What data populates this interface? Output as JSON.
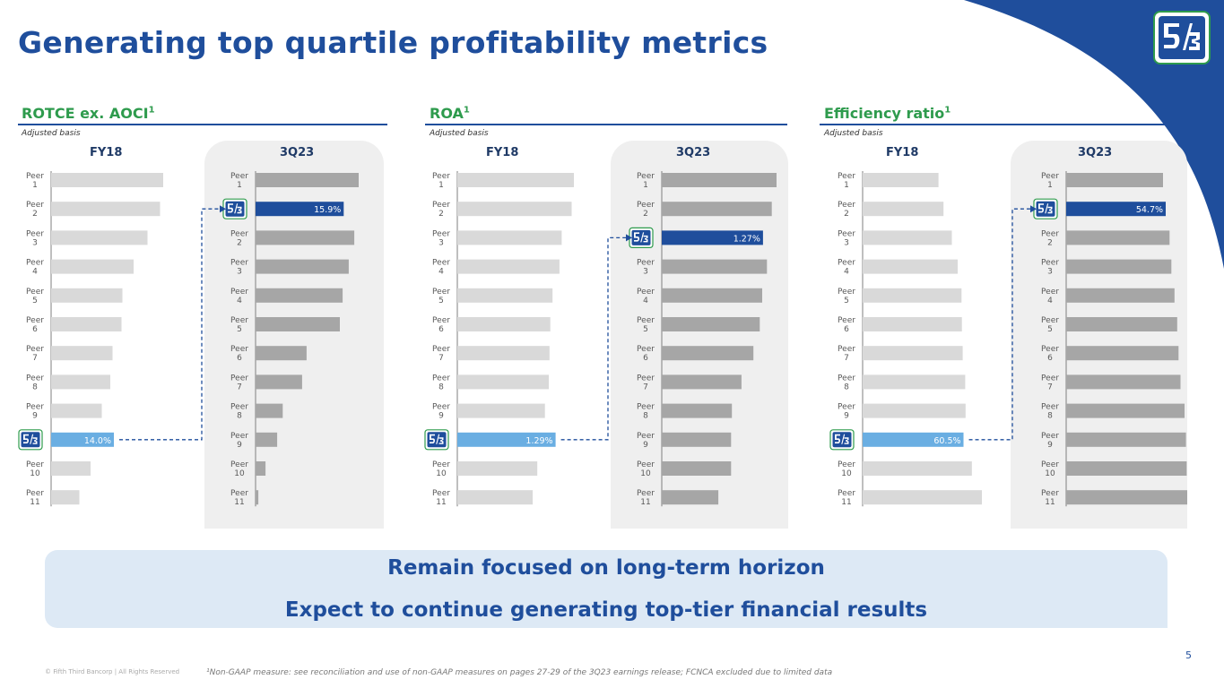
{
  "title": "Generating top quartile profitability metrics",
  "sections": [
    {
      "title": "ROTCE ex. AOCI",
      "sup": "1",
      "subtitle": "Adjusted basis"
    },
    {
      "title": "ROA",
      "sup": "1",
      "subtitle": "Adjusted basis"
    },
    {
      "title": "Efficiency ratio",
      "sup": "1",
      "subtitle": "Adjusted basis"
    }
  ],
  "column_labels": {
    "left": "FY18",
    "right": "3Q23"
  },
  "banner": {
    "line1": "Remain focused on long-term horizon",
    "line2": "Expect to continue generating top-tier financial results"
  },
  "page_number": "5",
  "copyright": "© Fifth Third Bancorp | All Rights Reserved",
  "footnote": "¹Non-GAAP measure: see reconciliation and use of non-GAAP measures on pages 27-29 of the 3Q23 earnings release; FCNCA excluded due to limited data",
  "colors": {
    "brand_blue": "#1f4e9c",
    "brand_green": "#2e9b4d",
    "fy18_bar": "#d9d9d9",
    "q3_bar": "#a6a6a6",
    "highlight_fy18": "#6aaee2",
    "highlight_q3": "#1f4e9c"
  },
  "chart_data": [
    {
      "type": "bar",
      "title": "ROTCE ex. AOCI",
      "panels": [
        {
          "label": "FY18",
          "categories": [
            "Peer 1",
            "Peer 2",
            "Peer 3",
            "Peer 4",
            "Peer 5",
            "Peer 6",
            "Peer 7",
            "Peer 8",
            "Peer 9",
            "Fifth Third",
            "Peer 10",
            "Peer 11"
          ],
          "values": [
            25.0,
            24.3,
            21.5,
            18.4,
            15.9,
            15.7,
            13.7,
            13.2,
            11.3,
            14.0,
            8.8,
            6.3
          ],
          "highlight": {
            "index": 9,
            "label": "14.0%"
          }
        },
        {
          "label": "3Q23",
          "categories": [
            "Peer 1",
            "Fifth Third",
            "Peer 2",
            "Peer 3",
            "Peer 4",
            "Peer 5",
            "Peer 6",
            "Peer 7",
            "Peer 8",
            "Peer 9",
            "Peer 10",
            "Peer 11"
          ],
          "values": [
            18.6,
            15.9,
            17.8,
            16.8,
            15.7,
            15.2,
            9.2,
            8.4,
            4.9,
            3.9,
            1.8,
            0.5
          ],
          "highlight": {
            "index": 1,
            "label": "15.9%"
          }
        }
      ]
    },
    {
      "type": "bar",
      "title": "ROA",
      "panels": [
        {
          "label": "FY18",
          "categories": [
            "Peer 1",
            "Peer 2",
            "Peer 3",
            "Peer 4",
            "Peer 5",
            "Peer 6",
            "Peer 7",
            "Peer 8",
            "Peer 9",
            "Fifth Third",
            "Peer 10",
            "Peer 11"
          ],
          "values": [
            1.53,
            1.5,
            1.37,
            1.34,
            1.25,
            1.22,
            1.21,
            1.2,
            1.15,
            1.29,
            1.05,
            0.99
          ],
          "highlight": {
            "index": 9,
            "label": "1.29%"
          }
        },
        {
          "label": "3Q23",
          "categories": [
            "Peer 1",
            "Peer 2",
            "Fifth Third",
            "Peer 3",
            "Peer 4",
            "Peer 5",
            "Peer 6",
            "Peer 7",
            "Peer 8",
            "Peer 9",
            "Peer 10",
            "Peer 11"
          ],
          "values": [
            1.44,
            1.38,
            1.27,
            1.32,
            1.26,
            1.23,
            1.15,
            1.0,
            0.88,
            0.87,
            0.87,
            0.71
          ],
          "highlight": {
            "index": 2,
            "label": "1.27%"
          }
        }
      ]
    },
    {
      "type": "bar",
      "title": "Efficiency ratio",
      "panels": [
        {
          "label": "FY18",
          "categories": [
            "Peer 1",
            "Peer 2",
            "Peer 3",
            "Peer 4",
            "Peer 5",
            "Peer 6",
            "Peer 7",
            "Peer 8",
            "Peer 9",
            "Fifth Third",
            "Peer 10",
            "Peer 11"
          ],
          "values": [
            45.5,
            48.5,
            53.5,
            57.0,
            59.3,
            59.5,
            60.0,
            61.5,
            61.7,
            60.5,
            65.5,
            71.5
          ],
          "highlight": {
            "index": 9,
            "label": "60.5%"
          }
        },
        {
          "label": "3Q23",
          "categories": [
            "Peer 1",
            "Fifth Third",
            "Peer 2",
            "Peer 3",
            "Peer 4",
            "Peer 5",
            "Peer 6",
            "Peer 7",
            "Peer 8",
            "Peer 9",
            "Peer 10",
            "Peer 11"
          ],
          "values": [
            53.2,
            54.7,
            56.8,
            57.8,
            59.5,
            61.0,
            61.7,
            62.8,
            65.0,
            65.8,
            66.2,
            66.5
          ],
          "highlight": {
            "index": 1,
            "label": "54.7%"
          }
        }
      ]
    }
  ]
}
